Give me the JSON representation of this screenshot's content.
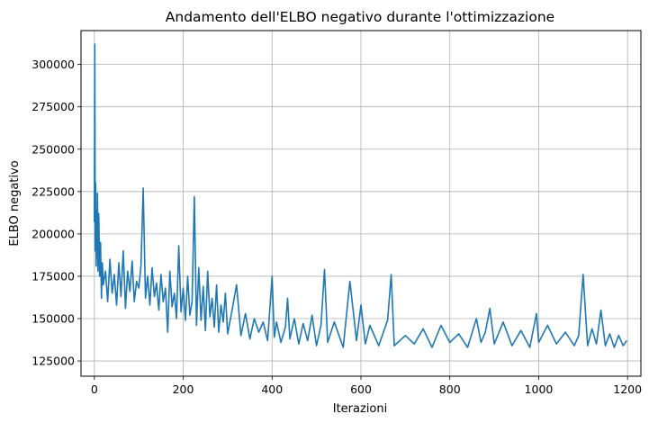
{
  "chart_data": {
    "type": "line",
    "title": "Andamento dell'ELBO negativo durante l'ottimizzazione",
    "xlabel": "Iterazioni",
    "ylabel": "ELBO negativo",
    "xlim": [
      -30,
      1230
    ],
    "ylim": [
      116000,
      320000
    ],
    "xticks": [
      0,
      200,
      400,
      600,
      800,
      1000,
      1200
    ],
    "yticks": [
      125000,
      150000,
      175000,
      200000,
      225000,
      250000,
      275000,
      300000
    ],
    "grid": true,
    "line_color": "#1f77b4",
    "series": [
      {
        "x": [
          0,
          1,
          2,
          3,
          4,
          5,
          6,
          7,
          8,
          10,
          12,
          14,
          16,
          18,
          20,
          25,
          30,
          35,
          40,
          45,
          50,
          55,
          60,
          65,
          70,
          75,
          80,
          85,
          90,
          95,
          100,
          105,
          110,
          115,
          120,
          125,
          130,
          135,
          140,
          145,
          150,
          155,
          160,
          165,
          170,
          175,
          180,
          185,
          190,
          195,
          200,
          205,
          210,
          215,
          220,
          225,
          230,
          235,
          240,
          245,
          250,
          255,
          260,
          265,
          270,
          275,
          280,
          285,
          290,
          295,
          300,
          310,
          320,
          330,
          340,
          350,
          360,
          370,
          380,
          390,
          400,
          405,
          410,
          420,
          430,
          435,
          440,
          450,
          460,
          470,
          480,
          490,
          500,
          510,
          518,
          525,
          540,
          560,
          575,
          590,
          600,
          610,
          620,
          640,
          660,
          668,
          675,
          700,
          720,
          740,
          760,
          780,
          800,
          820,
          840,
          860,
          870,
          880,
          890,
          900,
          920,
          940,
          960,
          980,
          995,
          1000,
          1020,
          1040,
          1060,
          1080,
          1090,
          1100,
          1110,
          1120,
          1130,
          1140,
          1150,
          1160,
          1170,
          1180,
          1190,
          1198
        ],
        "y": [
          207000,
          312000,
          190000,
          230000,
          181000,
          214000,
          186000,
          224000,
          178000,
          212000,
          175000,
          195000,
          162000,
          183000,
          170000,
          178000,
          160000,
          185000,
          165000,
          176000,
          158000,
          183000,
          163000,
          190000,
          156000,
          178000,
          166000,
          184000,
          160000,
          172000,
          168000,
          181000,
          227000,
          162000,
          175000,
          158000,
          180000,
          163000,
          171000,
          155000,
          176000,
          160000,
          168000,
          142000,
          178000,
          157000,
          165000,
          150000,
          193000,
          154000,
          168000,
          149000,
          175000,
          152000,
          160000,
          222000,
          146000,
          180000,
          149000,
          169000,
          143000,
          178000,
          151000,
          162000,
          145000,
          170000,
          142000,
          158000,
          148000,
          165000,
          141000,
          155000,
          170000,
          140000,
          153000,
          138000,
          150000,
          142000,
          148000,
          137000,
          175000,
          139000,
          148000,
          136000,
          145000,
          162000,
          138000,
          150000,
          135000,
          147000,
          137000,
          152000,
          134000,
          146000,
          179000,
          136000,
          148000,
          133000,
          172000,
          137000,
          158000,
          135000,
          146000,
          134000,
          149000,
          176000,
          134000,
          140000,
          135000,
          144000,
          133000,
          146000,
          136000,
          141000,
          133000,
          150000,
          136000,
          142000,
          156000,
          135000,
          148000,
          134000,
          143000,
          133000,
          153000,
          136000,
          146000,
          135000,
          142000,
          134000,
          140000,
          176000,
          134000,
          144000,
          135000,
          155000,
          134000,
          141000,
          133000,
          140000,
          134000,
          137000
        ]
      }
    ]
  }
}
